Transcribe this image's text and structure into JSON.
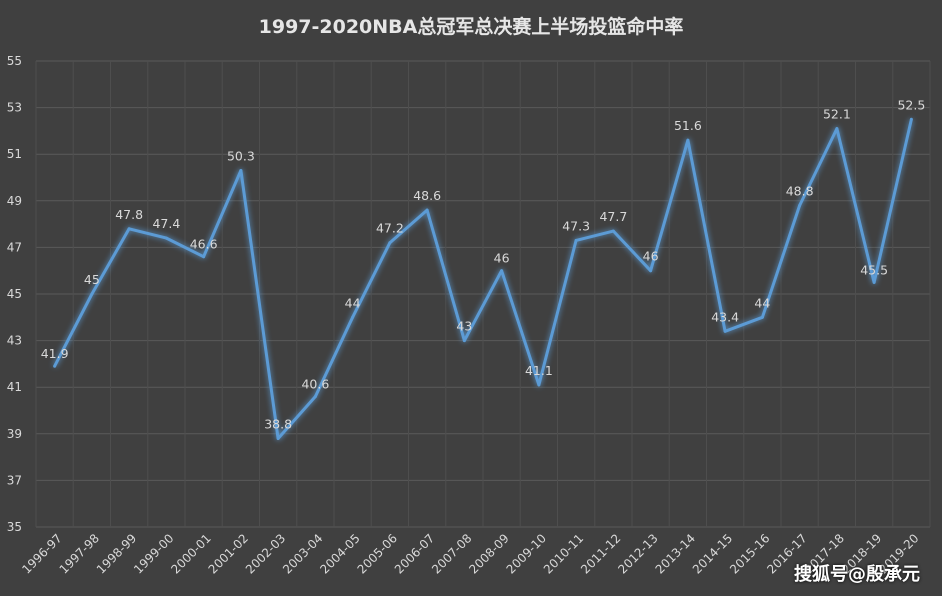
{
  "chart_data": {
    "type": "line",
    "title": "1997-2020NBA总冠军总决赛上半场投篮命中率",
    "categories": [
      "1996-97",
      "1997-98",
      "1998-99",
      "1999-00",
      "2000-01",
      "2001-02",
      "2002-03",
      "2003-04",
      "2004-05",
      "2005-06",
      "2006-07",
      "2007-08",
      "2008-09",
      "2009-10",
      "2010-11",
      "2011-12",
      "2012-13",
      "2013-14",
      "2014-15",
      "2015-16",
      "2016-17",
      "2017-18",
      "2018-19",
      "2019-20"
    ],
    "values": [
      41.9,
      45,
      47.8,
      47.4,
      46.6,
      50.3,
      38.8,
      40.6,
      44,
      47.2,
      48.6,
      43,
      46,
      41.1,
      47.3,
      47.7,
      46,
      51.6,
      43.4,
      44,
      48.8,
      52.1,
      45.5,
      52.5
    ],
    "data_labels": [
      "41.9",
      "45",
      "47.8",
      "47.4",
      "46.6",
      "50.3",
      "38.8",
      "40.6",
      "44",
      "47.2",
      "48.6",
      "43",
      "46",
      "41.1",
      "47.3",
      "47.7",
      "46",
      "51.6",
      "43.4",
      "44",
      "48.8",
      "52.1",
      "45.5",
      "52.5"
    ],
    "ylim": [
      35,
      55
    ],
    "yticks": [
      "35",
      "37",
      "39",
      "41",
      "43",
      "45",
      "47",
      "49",
      "51",
      "53",
      "55"
    ],
    "grid": true,
    "line_color": "#5b9bd5",
    "background_color": "#404040"
  },
  "watermark": "搜狐号@殷承元"
}
